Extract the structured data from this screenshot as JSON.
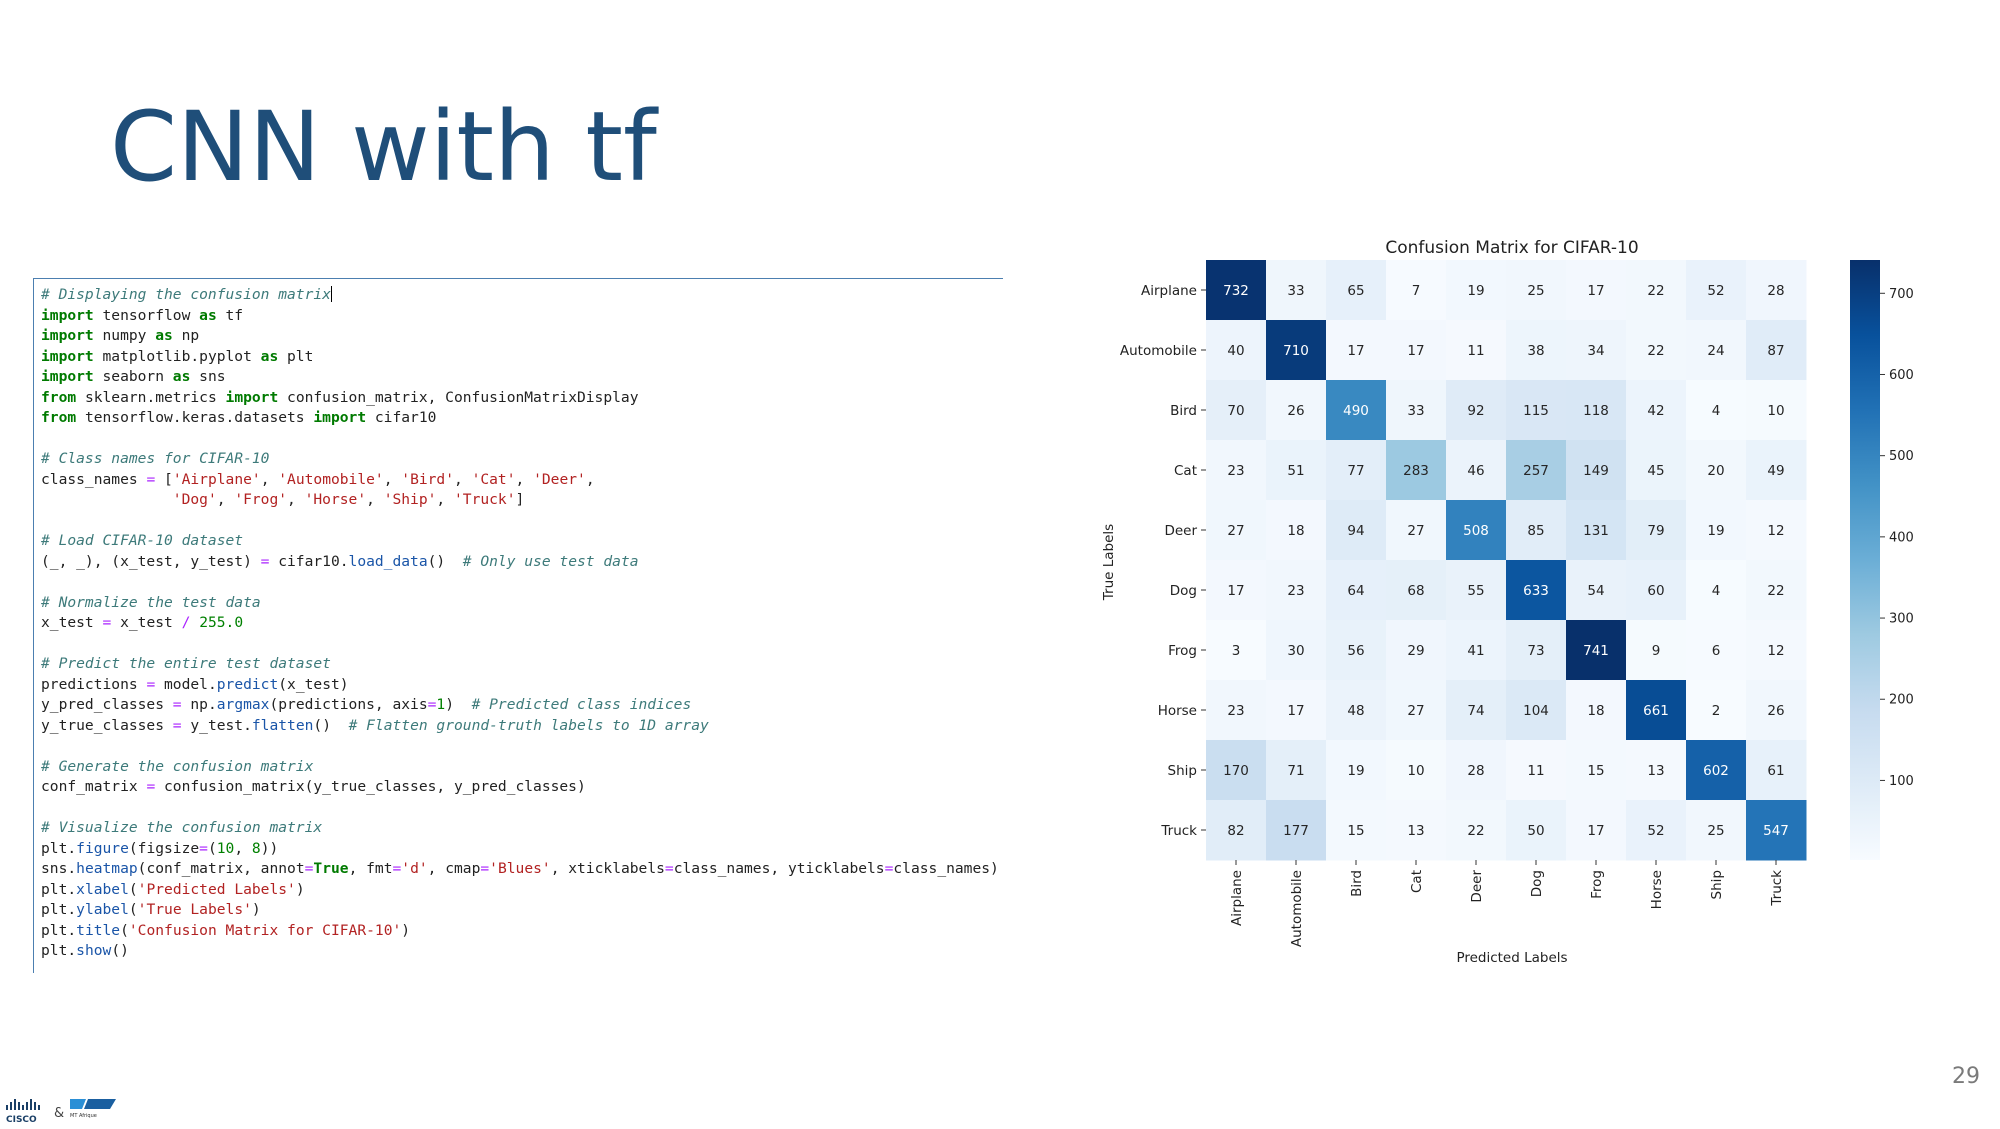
{
  "slide": {
    "title": "CNN with tf",
    "page_number": "29"
  },
  "footer": {
    "logo_left_text": "CISCO",
    "ampersand": "&",
    "logo_right_text": "MT Afrique"
  },
  "colors": {
    "title": "#1f4e79",
    "code_border": "#4c7fb0",
    "cmap_low": "#f7fbff",
    "cmap_high": "#08306b"
  },
  "code": {
    "lines": [
      [
        {
          "t": "com",
          "v": "# Displaying the confusion matrix"
        },
        {
          "t": "cursor",
          "v": ""
        }
      ],
      [
        {
          "t": "kw",
          "v": "import"
        },
        {
          "t": "pl",
          "v": " tensorflow "
        },
        {
          "t": "kw",
          "v": "as"
        },
        {
          "t": "pl",
          "v": " tf"
        }
      ],
      [
        {
          "t": "kw",
          "v": "import"
        },
        {
          "t": "pl",
          "v": " numpy "
        },
        {
          "t": "kw",
          "v": "as"
        },
        {
          "t": "pl",
          "v": " np"
        }
      ],
      [
        {
          "t": "kw",
          "v": "import"
        },
        {
          "t": "pl",
          "v": " matplotlib.pyplot "
        },
        {
          "t": "kw",
          "v": "as"
        },
        {
          "t": "pl",
          "v": " plt"
        }
      ],
      [
        {
          "t": "kw",
          "v": "import"
        },
        {
          "t": "pl",
          "v": " seaborn "
        },
        {
          "t": "kw",
          "v": "as"
        },
        {
          "t": "pl",
          "v": " sns"
        }
      ],
      [
        {
          "t": "kw",
          "v": "from"
        },
        {
          "t": "pl",
          "v": " sklearn.metrics "
        },
        {
          "t": "kw",
          "v": "import"
        },
        {
          "t": "pl",
          "v": " confusion_matrix, ConfusionMatrixDisplay"
        }
      ],
      [
        {
          "t": "kw",
          "v": "from"
        },
        {
          "t": "pl",
          "v": " tensorflow.keras.datasets "
        },
        {
          "t": "kw",
          "v": "import"
        },
        {
          "t": "pl",
          "v": " cifar10"
        }
      ],
      [],
      [
        {
          "t": "com",
          "v": "# Class names for CIFAR-10"
        }
      ],
      [
        {
          "t": "pl",
          "v": "class_names "
        },
        {
          "t": "op",
          "v": "="
        },
        {
          "t": "pl",
          "v": " ["
        },
        {
          "t": "str",
          "v": "'Airplane'"
        },
        {
          "t": "pl",
          "v": ", "
        },
        {
          "t": "str",
          "v": "'Automobile'"
        },
        {
          "t": "pl",
          "v": ", "
        },
        {
          "t": "str",
          "v": "'Bird'"
        },
        {
          "t": "pl",
          "v": ", "
        },
        {
          "t": "str",
          "v": "'Cat'"
        },
        {
          "t": "pl",
          "v": ", "
        },
        {
          "t": "str",
          "v": "'Deer'"
        },
        {
          "t": "pl",
          "v": ","
        }
      ],
      [
        {
          "t": "pl",
          "v": "               "
        },
        {
          "t": "str",
          "v": "'Dog'"
        },
        {
          "t": "pl",
          "v": ", "
        },
        {
          "t": "str",
          "v": "'Frog'"
        },
        {
          "t": "pl",
          "v": ", "
        },
        {
          "t": "str",
          "v": "'Horse'"
        },
        {
          "t": "pl",
          "v": ", "
        },
        {
          "t": "str",
          "v": "'Ship'"
        },
        {
          "t": "pl",
          "v": ", "
        },
        {
          "t": "str",
          "v": "'Truck'"
        },
        {
          "t": "pl",
          "v": "]"
        }
      ],
      [],
      [
        {
          "t": "com",
          "v": "# Load CIFAR-10 dataset"
        }
      ],
      [
        {
          "t": "pl",
          "v": "(_, _), (x_test, y_test) "
        },
        {
          "t": "op",
          "v": "="
        },
        {
          "t": "pl",
          "v": " cifar10."
        },
        {
          "t": "fn",
          "v": "load_data"
        },
        {
          "t": "pl",
          "v": "()  "
        },
        {
          "t": "com",
          "v": "# Only use test data"
        }
      ],
      [],
      [
        {
          "t": "com",
          "v": "# Normalize the test data"
        }
      ],
      [
        {
          "t": "pl",
          "v": "x_test "
        },
        {
          "t": "op",
          "v": "="
        },
        {
          "t": "pl",
          "v": " x_test "
        },
        {
          "t": "op",
          "v": "/"
        },
        {
          "t": "pl",
          "v": " "
        },
        {
          "t": "num",
          "v": "255.0"
        }
      ],
      [],
      [
        {
          "t": "com",
          "v": "# Predict the entire test dataset"
        }
      ],
      [
        {
          "t": "pl",
          "v": "predictions "
        },
        {
          "t": "op",
          "v": "="
        },
        {
          "t": "pl",
          "v": " model."
        },
        {
          "t": "fn",
          "v": "predict"
        },
        {
          "t": "pl",
          "v": "(x_test)"
        }
      ],
      [
        {
          "t": "pl",
          "v": "y_pred_classes "
        },
        {
          "t": "op",
          "v": "="
        },
        {
          "t": "pl",
          "v": " np."
        },
        {
          "t": "fn",
          "v": "argmax"
        },
        {
          "t": "pl",
          "v": "(predictions, axis"
        },
        {
          "t": "op",
          "v": "="
        },
        {
          "t": "num",
          "v": "1"
        },
        {
          "t": "pl",
          "v": ")  "
        },
        {
          "t": "com",
          "v": "# Predicted class indices"
        }
      ],
      [
        {
          "t": "pl",
          "v": "y_true_classes "
        },
        {
          "t": "op",
          "v": "="
        },
        {
          "t": "pl",
          "v": " y_test."
        },
        {
          "t": "fn",
          "v": "flatten"
        },
        {
          "t": "pl",
          "v": "()  "
        },
        {
          "t": "com",
          "v": "# Flatten ground-truth labels to 1D array"
        }
      ],
      [],
      [
        {
          "t": "com",
          "v": "# Generate the confusion matrix"
        }
      ],
      [
        {
          "t": "pl",
          "v": "conf_matrix "
        },
        {
          "t": "op",
          "v": "="
        },
        {
          "t": "pl",
          "v": " confusion_matrix(y_true_classes, y_pred_classes)"
        }
      ],
      [],
      [
        {
          "t": "com",
          "v": "# Visualize the confusion matrix"
        }
      ],
      [
        {
          "t": "pl",
          "v": "plt."
        },
        {
          "t": "fn",
          "v": "figure"
        },
        {
          "t": "pl",
          "v": "(figsize"
        },
        {
          "t": "op",
          "v": "="
        },
        {
          "t": "pl",
          "v": "("
        },
        {
          "t": "num",
          "v": "10"
        },
        {
          "t": "pl",
          "v": ", "
        },
        {
          "t": "num",
          "v": "8"
        },
        {
          "t": "pl",
          "v": "))"
        }
      ],
      [
        {
          "t": "pl",
          "v": "sns."
        },
        {
          "t": "fn",
          "v": "heatmap"
        },
        {
          "t": "pl",
          "v": "(conf_matrix, annot"
        },
        {
          "t": "op",
          "v": "="
        },
        {
          "t": "kw",
          "v": "True"
        },
        {
          "t": "pl",
          "v": ", fmt"
        },
        {
          "t": "op",
          "v": "="
        },
        {
          "t": "str",
          "v": "'d'"
        },
        {
          "t": "pl",
          "v": ", cmap"
        },
        {
          "t": "op",
          "v": "="
        },
        {
          "t": "str",
          "v": "'Blues'"
        },
        {
          "t": "pl",
          "v": ", xticklabels"
        },
        {
          "t": "op",
          "v": "="
        },
        {
          "t": "pl",
          "v": "class_names, yticklabels"
        },
        {
          "t": "op",
          "v": "="
        },
        {
          "t": "pl",
          "v": "class_names)"
        }
      ],
      [
        {
          "t": "pl",
          "v": "plt."
        },
        {
          "t": "fn",
          "v": "xlabel"
        },
        {
          "t": "pl",
          "v": "("
        },
        {
          "t": "str",
          "v": "'Predicted Labels'"
        },
        {
          "t": "pl",
          "v": ")"
        }
      ],
      [
        {
          "t": "pl",
          "v": "plt."
        },
        {
          "t": "fn",
          "v": "ylabel"
        },
        {
          "t": "pl",
          "v": "("
        },
        {
          "t": "str",
          "v": "'True Labels'"
        },
        {
          "t": "pl",
          "v": ")"
        }
      ],
      [
        {
          "t": "pl",
          "v": "plt."
        },
        {
          "t": "fn",
          "v": "title"
        },
        {
          "t": "pl",
          "v": "("
        },
        {
          "t": "str",
          "v": "'Confusion Matrix for CIFAR-10'"
        },
        {
          "t": "pl",
          "v": ")"
        }
      ],
      [
        {
          "t": "pl",
          "v": "plt."
        },
        {
          "t": "fn",
          "v": "show"
        },
        {
          "t": "pl",
          "v": "()"
        }
      ]
    ]
  },
  "chart_data": {
    "type": "heatmap",
    "title": "Confusion Matrix for CIFAR-10",
    "xlabel": "Predicted Labels",
    "ylabel": "True Labels",
    "x_categories": [
      "Airplane",
      "Automobile",
      "Bird",
      "Cat",
      "Deer",
      "Dog",
      "Frog",
      "Horse",
      "Ship",
      "Truck"
    ],
    "y_categories": [
      "Airplane",
      "Automobile",
      "Bird",
      "Cat",
      "Deer",
      "Dog",
      "Frog",
      "Horse",
      "Ship",
      "Truck"
    ],
    "values": [
      [
        732,
        33,
        65,
        7,
        19,
        25,
        17,
        22,
        52,
        28
      ],
      [
        40,
        710,
        17,
        17,
        11,
        38,
        34,
        22,
        24,
        87
      ],
      [
        70,
        26,
        490,
        33,
        92,
        115,
        118,
        42,
        4,
        10
      ],
      [
        23,
        51,
        77,
        283,
        46,
        257,
        149,
        45,
        20,
        49
      ],
      [
        27,
        18,
        94,
        27,
        508,
        85,
        131,
        79,
        19,
        12
      ],
      [
        17,
        23,
        64,
        68,
        55,
        633,
        54,
        60,
        4,
        22
      ],
      [
        3,
        30,
        56,
        29,
        41,
        73,
        741,
        9,
        6,
        12
      ],
      [
        23,
        17,
        48,
        27,
        74,
        104,
        18,
        661,
        2,
        26
      ],
      [
        170,
        71,
        19,
        10,
        28,
        11,
        15,
        13,
        602,
        61
      ],
      [
        82,
        177,
        15,
        13,
        22,
        50,
        17,
        52,
        25,
        547
      ]
    ],
    "colormap": "Blues",
    "vmin": 2,
    "vmax": 741,
    "colorbar_ticks": [
      100,
      200,
      300,
      400,
      500,
      600,
      700
    ],
    "grid": false,
    "legend": "colorbar-right"
  }
}
